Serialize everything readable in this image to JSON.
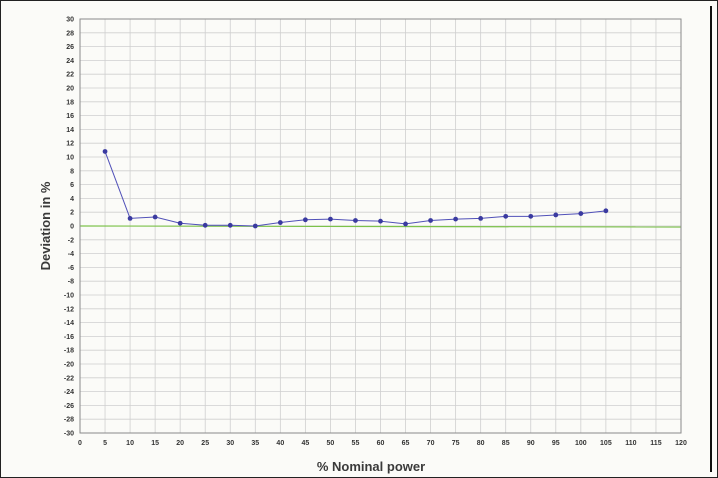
{
  "chart_data": {
    "type": "line",
    "title": "",
    "xlabel": "% Nominal power",
    "ylabel": "Deviation in %",
    "xlim": [
      0,
      120
    ],
    "ylim": [
      -30,
      30
    ],
    "x_ticks": [
      0,
      5,
      10,
      15,
      20,
      25,
      30,
      35,
      40,
      45,
      50,
      55,
      60,
      65,
      70,
      75,
      80,
      85,
      90,
      95,
      100,
      105,
      110,
      115,
      120
    ],
    "y_ticks": [
      30,
      28,
      26,
      24,
      22,
      20,
      18,
      16,
      14,
      12,
      10,
      8,
      6,
      4,
      2,
      0,
      -2,
      -4,
      -6,
      -8,
      -10,
      -12,
      -14,
      -16,
      -18,
      -20,
      -22,
      -24,
      -26,
      -28,
      -30
    ],
    "grid": true,
    "reference_line": 0,
    "colors": {
      "series": "#5050b8",
      "marker": "#3a3aa0",
      "zero_line": "#7cc24a",
      "grid": "#cfcfcf"
    },
    "series": [
      {
        "x": [
          5,
          10,
          15,
          20,
          25,
          30,
          35,
          40,
          45,
          50,
          55,
          60,
          65,
          70,
          75,
          80,
          85,
          90,
          95,
          100,
          105
        ],
        "y": [
          10.8,
          1.1,
          1.3,
          0.4,
          0.1,
          0.1,
          0.0,
          0.5,
          0.9,
          1.0,
          0.8,
          0.7,
          0.3,
          0.8,
          1.0,
          1.1,
          1.4,
          1.4,
          1.6,
          1.8,
          2.2
        ]
      }
    ]
  }
}
